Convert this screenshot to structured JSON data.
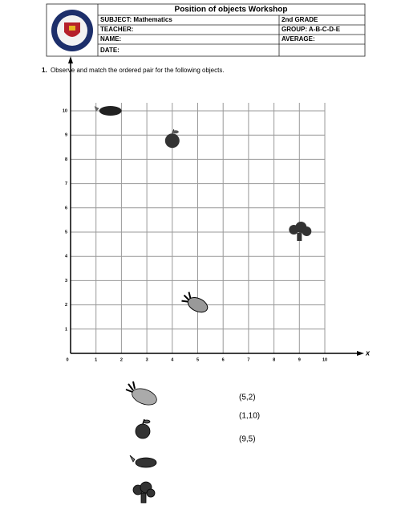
{
  "header": {
    "title": "Position of objects Workshop",
    "rows": [
      [
        "SUBJECT: Mathematics",
        "2nd  GRADE"
      ],
      [
        "TEACHER:",
        "GROUP: A-B-C-D-E"
      ],
      [
        "NAME:",
        "AVERAGE:"
      ],
      [
        "DATE:",
        ""
      ]
    ]
  },
  "instruction": {
    "number": "1.",
    "text": "Observe and match the ordered pair for the following objects."
  },
  "grid": {
    "xlim": [
      0,
      10
    ],
    "ylim": [
      0,
      10
    ],
    "xticks": [
      0,
      1,
      2,
      3,
      4,
      5,
      6,
      7,
      8,
      9,
      10
    ],
    "yticks": [
      1,
      2,
      3,
      4,
      5,
      6,
      7,
      8,
      9,
      10
    ],
    "x_label": "x",
    "points": [
      {
        "x": 1,
        "y": 10
      },
      {
        "x": 4,
        "y": 9
      },
      {
        "x": 9,
        "y": 5
      },
      {
        "x": 5,
        "y": 2
      }
    ]
  },
  "answers": [
    "(5,2)",
    "(1,10)",
    "(9,5)"
  ]
}
